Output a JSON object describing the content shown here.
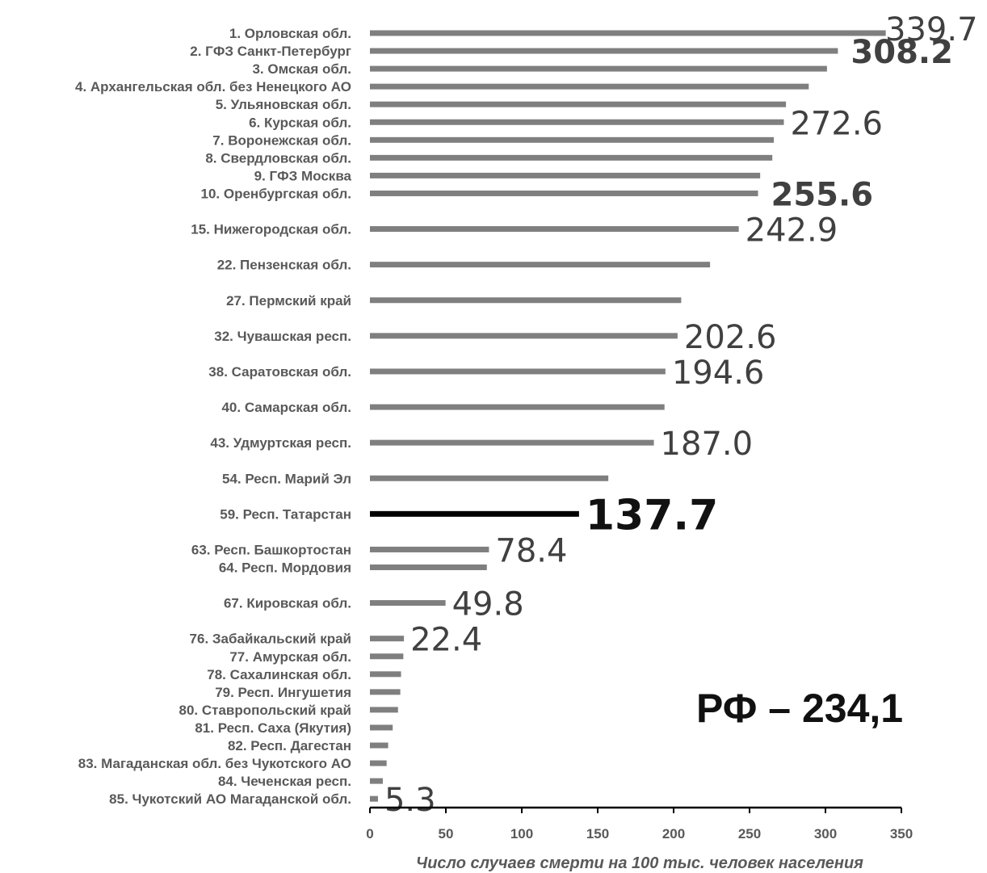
{
  "chart_data": {
    "type": "bar",
    "orientation": "horizontal",
    "xlabel": "Число случаев смерти на 100 тыс. человек населения",
    "xlim": [
      0,
      350
    ],
    "xticks": [
      "0",
      "50",
      "100",
      "150",
      "200",
      "250",
      "300",
      "350"
    ],
    "grid": false,
    "bar_color": "#7f7f7f",
    "highlight_color": "#000000",
    "annotation": "РФ – 234,1",
    "categories": [
      {
        "label": "1. Орловская обл.",
        "value": 339.7,
        "value_label": "339.7"
      },
      {
        "label": "2. ГФЗ Санкт-Петербург",
        "value": 308.2,
        "value_label": "308.2",
        "value_label_bold": true
      },
      {
        "label": "3. Омская обл.",
        "value": 301.0
      },
      {
        "label": "4. Архангельская обл. без Ненецкого АО",
        "value": 289.0
      },
      {
        "label": "5. Ульяновская обл.",
        "value": 274.0
      },
      {
        "label": "6. Курская обл.",
        "value": 272.6,
        "value_label": "272.6"
      },
      {
        "label": "7. Воронежская обл.",
        "value": 266.0
      },
      {
        "label": "8. Свердловская обл.",
        "value": 265.0
      },
      {
        "label": "9. ГФЗ Москва",
        "value": 257.0
      },
      {
        "label": "10. Оренбургская обл.",
        "value": 255.6,
        "value_label": "255.6",
        "value_label_bold": true
      },
      {
        "label": "15. Нижегородская обл.",
        "value": 242.9,
        "value_label": "242.9",
        "gap_before": true
      },
      {
        "label": "22. Пензенская обл.",
        "value": 224.0,
        "gap_before": true
      },
      {
        "label": "27. Пермский край",
        "value": 205.0,
        "gap_before": true
      },
      {
        "label": "32. Чувашская респ.",
        "value": 202.6,
        "value_label": "202.6",
        "gap_before": true
      },
      {
        "label": "38. Саратовская обл.",
        "value": 194.6,
        "value_label": "194.6",
        "gap_before": true
      },
      {
        "label": "40. Самарская обл.",
        "value": 194.0,
        "gap_before": true
      },
      {
        "label": "43. Удмуртская респ.",
        "value": 187.0,
        "value_label": "187.0",
        "gap_before": true
      },
      {
        "label": "54. Респ. Марий Эл",
        "value": 157.0,
        "gap_before": true
      },
      {
        "label": "59. Респ. Татарстан",
        "value": 137.7,
        "value_label": "137.7",
        "value_label_bold": true,
        "highlight": true,
        "gap_before": true
      },
      {
        "label": "63. Респ. Башкортостан",
        "value": 78.4,
        "value_label": "78.4",
        "gap_before": true
      },
      {
        "label": "64. Респ. Мордовия",
        "value": 77.0
      },
      {
        "label": "67. Кировская обл.",
        "value": 49.8,
        "value_label": "49.8",
        "gap_before": true
      },
      {
        "label": "76. Забайкальский край",
        "value": 22.4,
        "value_label": "22.4",
        "gap_before": true
      },
      {
        "label": "77. Амурская обл.",
        "value": 22.0
      },
      {
        "label": "78. Сахалинская обл.",
        "value": 20.5
      },
      {
        "label": "79. Респ. Ингушетия",
        "value": 20.0
      },
      {
        "label": "80. Ставропольский край",
        "value": 18.5
      },
      {
        "label": "81. Респ. Саха (Якутия)",
        "value": 15.0
      },
      {
        "label": "82. Респ. Дагестан",
        "value": 12.0
      },
      {
        "label": "83. Магаданская обл. без Чукотского АО",
        "value": 11.0
      },
      {
        "label": "84. Чеченская респ.",
        "value": 8.5
      },
      {
        "label": "85. Чукотский АО Магаданской обл.",
        "value": 5.3,
        "value_label": "5.3"
      }
    ]
  }
}
